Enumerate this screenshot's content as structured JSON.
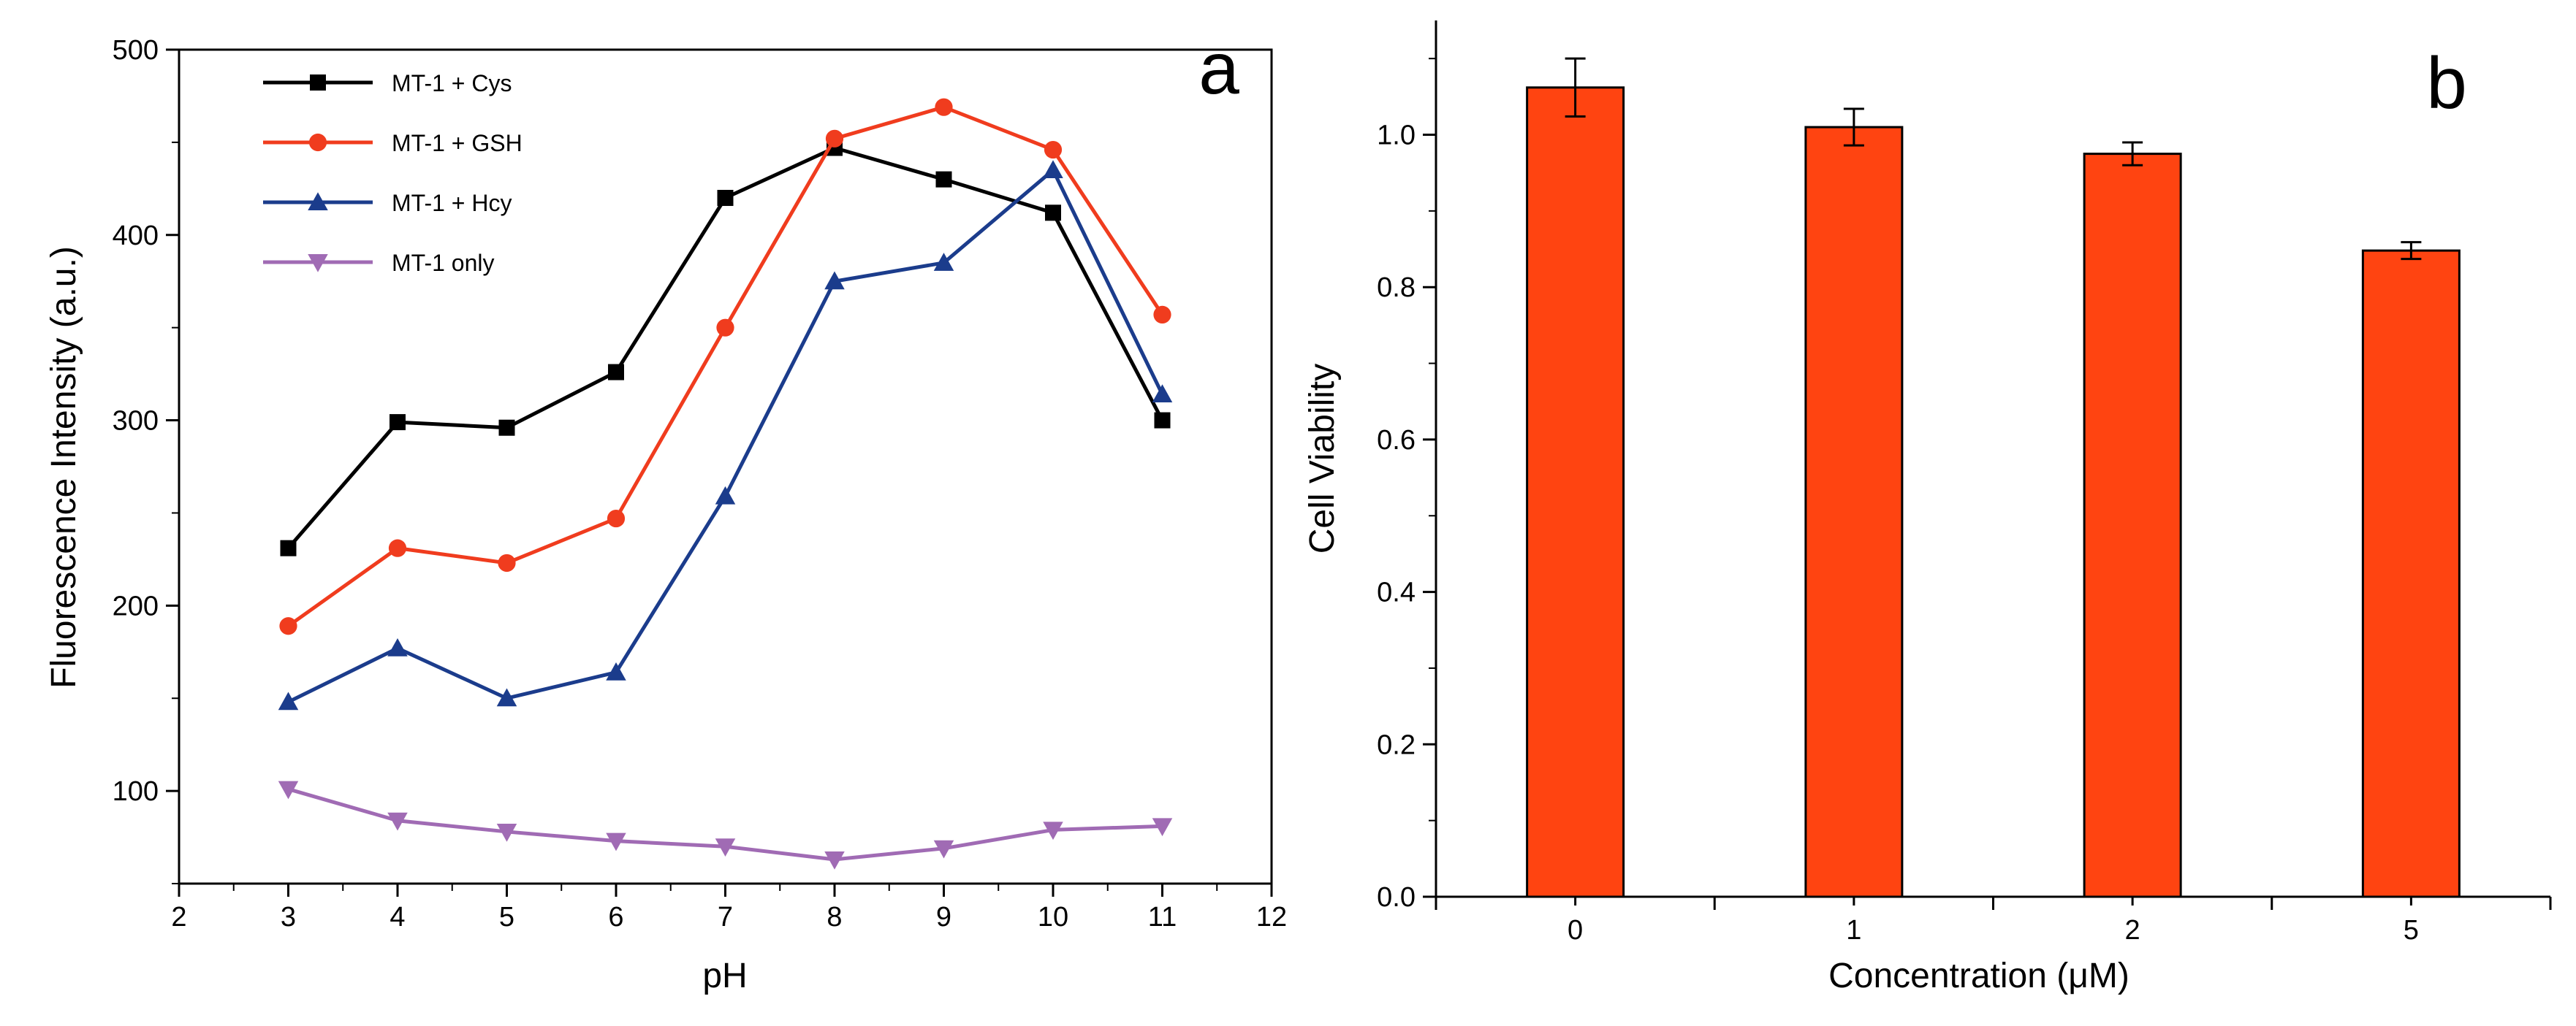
{
  "chart_data": [
    {
      "type": "line",
      "panel_label": "a",
      "xlabel": "pH",
      "ylabel": "Fluorescence Intensity (a.u.)",
      "xlim": [
        2,
        12
      ],
      "ylim": [
        50,
        500
      ],
      "xticks": [
        2,
        3,
        4,
        5,
        6,
        7,
        8,
        9,
        10,
        11,
        12
      ],
      "yticks": [
        100,
        200,
        300,
        400,
        500
      ],
      "x": [
        3,
        4,
        5,
        6,
        7,
        8,
        9,
        10,
        11
      ],
      "legend_position": "top-left",
      "series": [
        {
          "name": "MT-1 + Cys",
          "color": "#000000",
          "marker": "square",
          "values": [
            231,
            299,
            296,
            326,
            420,
            447,
            430,
            412,
            300
          ]
        },
        {
          "name": "MT-1 + GSH",
          "color": "#f03c1e",
          "marker": "circle",
          "values": [
            189,
            231,
            223,
            247,
            350,
            452,
            469,
            446,
            357
          ]
        },
        {
          "name": "MT-1 + Hcy",
          "color": "#1b3c8c",
          "marker": "triangle-up",
          "values": [
            148,
            177,
            150,
            164,
            259,
            375,
            385,
            435,
            314
          ]
        },
        {
          "name": "MT-1 only",
          "color": "#a06bb4",
          "marker": "triangle-down",
          "values": [
            101,
            84,
            78,
            73,
            70,
            63,
            69,
            79,
            81
          ]
        }
      ]
    },
    {
      "type": "bar",
      "panel_label": "b",
      "xlabel": "Concentration (μM)",
      "ylabel": "Cell Viability",
      "ylim": [
        0,
        1.15
      ],
      "yticks": [
        "0.0",
        "0.2",
        "0.4",
        "0.6",
        "0.8",
        "1.0"
      ],
      "categories": [
        "0",
        "1",
        "2",
        "5"
      ],
      "values": [
        1.062,
        1.01,
        0.975,
        0.848
      ],
      "errors": [
        0.038,
        0.024,
        0.015,
        0.011
      ],
      "bar_color": "#ff4411"
    }
  ]
}
